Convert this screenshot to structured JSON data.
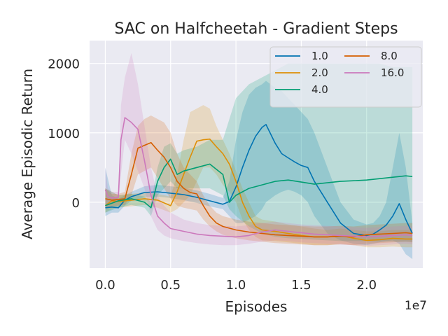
{
  "chart_data": {
    "type": "line",
    "title": "SAC on Halfcheetah - Gradient Steps",
    "xlabel": "Episodes",
    "ylabel": "Average Episodic Return",
    "x_multiplier_label": "1e7",
    "xlim": [
      -0.12,
      2.43
    ],
    "ylim": [
      -950,
      2330
    ],
    "xticks": [
      0.0,
      0.5,
      1.0,
      1.5,
      2.0
    ],
    "xtick_labels": [
      "0.0",
      "0.5",
      "1.0",
      "1.5",
      "2.0"
    ],
    "yticks": [
      0,
      1000,
      2000
    ],
    "ytick_labels": [
      "0",
      "1000",
      "2000"
    ],
    "grid": true,
    "legend_position": "top-right",
    "legend_columns": 2,
    "series": [
      {
        "name": "1.0",
        "color": "#0173b2",
        "x": [
          0.0,
          0.05,
          0.1,
          0.15,
          0.2,
          0.3,
          0.4,
          0.5,
          0.6,
          0.7,
          0.8,
          0.9,
          0.95,
          1.0,
          1.05,
          1.1,
          1.15,
          1.2,
          1.23,
          1.3,
          1.35,
          1.4,
          1.45,
          1.5,
          1.55,
          1.6,
          1.7,
          1.8,
          1.9,
          2.0,
          2.05,
          2.1,
          2.15,
          2.2,
          2.25,
          2.3,
          2.35
        ],
        "y": [
          -80,
          -70,
          -80,
          30,
          80,
          140,
          150,
          130,
          110,
          70,
          20,
          -30,
          10,
          220,
          500,
          750,
          950,
          1080,
          1120,
          850,
          700,
          640,
          580,
          530,
          500,
          300,
          0,
          -300,
          -450,
          -480,
          -460,
          -400,
          -330,
          -200,
          -20,
          -250,
          -450
        ],
        "band_upper": [
          500,
          100,
          50,
          100,
          150,
          230,
          250,
          230,
          210,
          170,
          120,
          60,
          300,
          900,
          1300,
          1550,
          1650,
          1700,
          1750,
          1650,
          1600,
          1500,
          1400,
          1300,
          1200,
          1000,
          500,
          0,
          -250,
          -320,
          -300,
          -200,
          0,
          500,
          1000,
          500,
          -300
        ],
        "band_lower": [
          -200,
          -150,
          -150,
          -50,
          20,
          70,
          80,
          60,
          30,
          -10,
          -60,
          -100,
          -200,
          -300,
          -300,
          -250,
          -200,
          -100,
          0,
          100,
          150,
          180,
          150,
          100,
          0,
          -200,
          -450,
          -550,
          -600,
          -620,
          -600,
          -580,
          -560,
          -550,
          -600,
          -750,
          -820
        ]
      },
      {
        "name": "2.0",
        "color": "#de8f05",
        "x": [
          0.0,
          0.05,
          0.1,
          0.2,
          0.3,
          0.4,
          0.5,
          0.55,
          0.6,
          0.65,
          0.7,
          0.75,
          0.8,
          0.85,
          0.9,
          0.95,
          1.0,
          1.05,
          1.1,
          1.15,
          1.2,
          1.3,
          1.4,
          1.5,
          1.6,
          1.7,
          1.8,
          1.9,
          2.0,
          2.1,
          2.2,
          2.3,
          2.35
        ],
        "y": [
          -50,
          20,
          10,
          30,
          50,
          30,
          -50,
          150,
          400,
          650,
          880,
          900,
          910,
          800,
          700,
          550,
          300,
          0,
          -200,
          -350,
          -400,
          -420,
          -450,
          -480,
          -500,
          -500,
          -480,
          -520,
          -550,
          -540,
          -520,
          -530,
          -530
        ],
        "band_upper": [
          200,
          150,
          100,
          120,
          140,
          120,
          80,
          400,
          900,
          1300,
          1350,
          1400,
          1350,
          1100,
          900,
          700,
          450,
          200,
          0,
          -200,
          -250,
          -280,
          -320,
          -350,
          -380,
          -400,
          -380,
          -400,
          -420,
          -420,
          -400,
          -400,
          -400
        ],
        "band_lower": [
          -150,
          -100,
          -80,
          -60,
          -40,
          -80,
          -150,
          -100,
          0,
          100,
          300,
          500,
          500,
          400,
          250,
          150,
          0,
          -250,
          -400,
          -500,
          -550,
          -560,
          -580,
          -600,
          -620,
          -620,
          -600,
          -620,
          -650,
          -650,
          -640,
          -650,
          -650
        ]
      },
      {
        "name": "4.0",
        "color": "#029e73",
        "x": [
          0.0,
          0.1,
          0.2,
          0.3,
          0.35,
          0.4,
          0.45,
          0.5,
          0.55,
          0.6,
          0.7,
          0.8,
          0.9,
          0.95,
          1.0,
          1.1,
          1.2,
          1.3,
          1.4,
          1.5,
          1.6,
          1.7,
          1.8,
          1.9,
          2.0,
          2.1,
          2.2,
          2.3,
          2.35
        ],
        "y": [
          -50,
          20,
          50,
          0,
          -80,
          300,
          500,
          620,
          400,
          450,
          500,
          550,
          400,
          0,
          100,
          200,
          250,
          300,
          320,
          290,
          260,
          280,
          300,
          310,
          320,
          340,
          360,
          380,
          370
        ],
        "band_upper": [
          200,
          100,
          120,
          80,
          0,
          500,
          800,
          850,
          700,
          750,
          800,
          900,
          900,
          1200,
          1500,
          1700,
          1800,
          1900,
          2000,
          2000,
          2000,
          2000,
          2000,
          2000,
          2000,
          2000,
          1950,
          1950,
          1950
        ],
        "band_lower": [
          -150,
          -80,
          -40,
          -80,
          -200,
          100,
          200,
          300,
          200,
          200,
          200,
          200,
          100,
          -100,
          -200,
          -350,
          -450,
          -500,
          -520,
          -530,
          -540,
          -550,
          -560,
          -560,
          -560,
          -570,
          -570,
          -570,
          -570
        ]
      },
      {
        "name": "8.0",
        "color": "#d55e00",
        "x": [
          0.0,
          0.05,
          0.1,
          0.15,
          0.2,
          0.25,
          0.3,
          0.35,
          0.4,
          0.45,
          0.5,
          0.55,
          0.6,
          0.65,
          0.7,
          0.75,
          0.8,
          0.85,
          0.9,
          1.0,
          1.1,
          1.2,
          1.3,
          1.4,
          1.5,
          1.6,
          1.7,
          1.8,
          1.9,
          2.0,
          2.1,
          2.2,
          2.3,
          2.35
        ],
        "y": [
          50,
          30,
          40,
          50,
          400,
          780,
          820,
          860,
          750,
          650,
          500,
          300,
          200,
          140,
          120,
          -50,
          -200,
          -300,
          -350,
          -400,
          -430,
          -450,
          -470,
          -480,
          -490,
          -500,
          -500,
          -490,
          -500,
          -470,
          -460,
          -450,
          -440,
          -450
        ],
        "band_upper": [
          200,
          120,
          120,
          150,
          700,
          1100,
          1200,
          1250,
          1200,
          1150,
          1000,
          700,
          500,
          400,
          300,
          100,
          -50,
          -150,
          -200,
          -250,
          -280,
          -300,
          -320,
          -330,
          -340,
          -350,
          -350,
          -340,
          -350,
          -330,
          -320,
          -310,
          -300,
          -300
        ],
        "band_lower": [
          -80,
          -60,
          -50,
          -40,
          100,
          400,
          450,
          500,
          350,
          200,
          50,
          -50,
          -80,
          -100,
          -120,
          -250,
          -350,
          -420,
          -470,
          -520,
          -550,
          -570,
          -590,
          -600,
          -610,
          -620,
          -620,
          -610,
          -620,
          -600,
          -590,
          -580,
          -570,
          -580
        ]
      },
      {
        "name": "16.0",
        "color": "#cc78bc",
        "x": [
          0.0,
          0.02,
          0.05,
          0.1,
          0.12,
          0.15,
          0.2,
          0.25,
          0.3,
          0.35,
          0.4,
          0.45,
          0.5,
          0.6,
          0.7,
          0.8,
          0.9,
          1.0,
          1.1,
          1.2,
          1.3,
          1.4,
          1.5,
          1.6,
          1.7,
          1.8,
          1.9,
          2.0,
          2.1,
          2.2,
          2.3,
          2.35
        ],
        "y": [
          180,
          80,
          60,
          70,
          900,
          1220,
          1150,
          1050,
          600,
          100,
          -200,
          -300,
          -380,
          -420,
          -460,
          -480,
          -490,
          -500,
          -480,
          -430,
          -400,
          -420,
          -440,
          -460,
          -470,
          -480,
          -490,
          -500,
          -490,
          -480,
          -470,
          -480
        ],
        "band_upper": [
          500,
          200,
          150,
          150,
          1400,
          1800,
          2150,
          1700,
          1100,
          500,
          100,
          -50,
          -150,
          -250,
          -300,
          -330,
          -340,
          -350,
          -330,
          -300,
          -280,
          -300,
          -320,
          -330,
          -340,
          -350,
          -360,
          -370,
          -360,
          -350,
          -340,
          -350
        ],
        "band_lower": [
          -100,
          -50,
          -20,
          0,
          400,
          900,
          700,
          450,
          200,
          -200,
          -400,
          -480,
          -520,
          -560,
          -590,
          -610,
          -620,
          -620,
          -600,
          -570,
          -550,
          -560,
          -580,
          -590,
          -600,
          -610,
          -620,
          -630,
          -620,
          -610,
          -600,
          -610
        ]
      }
    ]
  }
}
